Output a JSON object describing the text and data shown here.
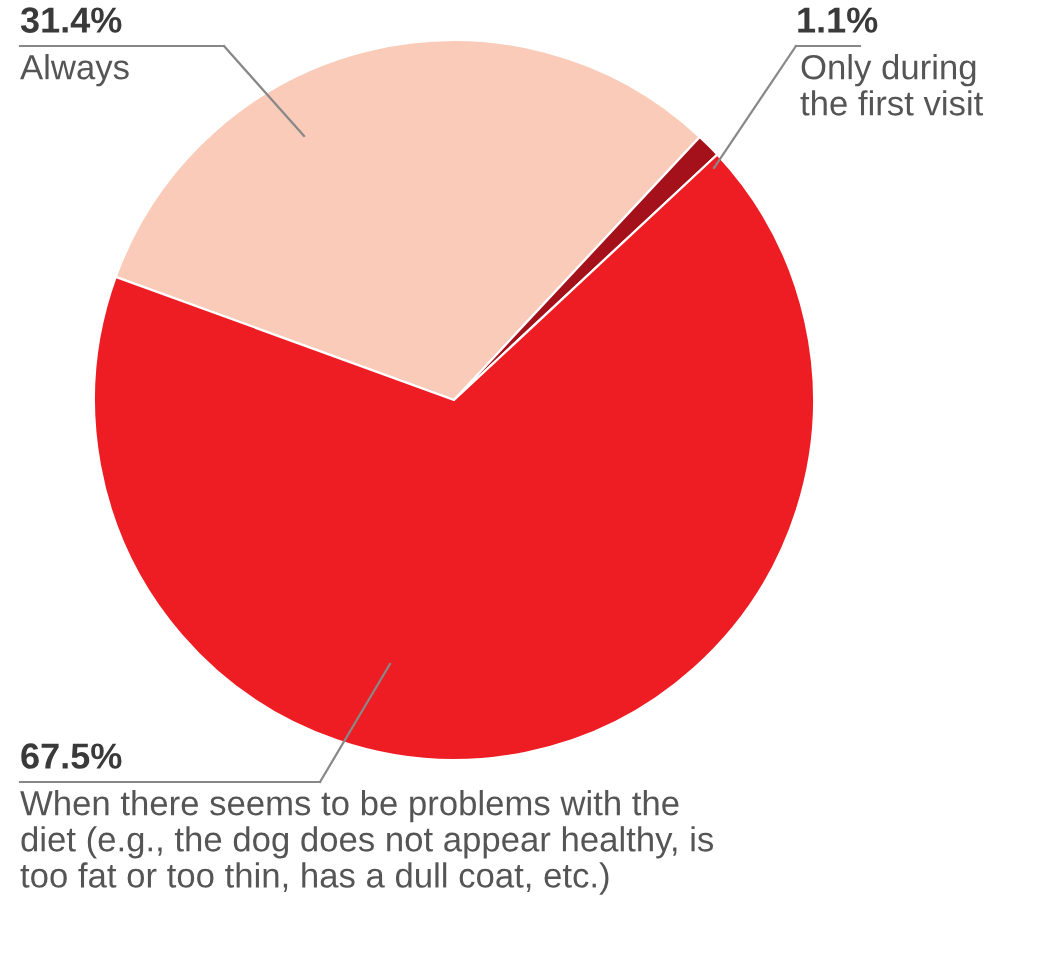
{
  "chart_data": {
    "type": "pie",
    "categories": [
      "Always",
      "Only during\nthe first visit",
      "When there seems to be problems with the\ndiet (e.g., the dog does not appear healthy, is\ntoo fat or too thin, has a dull coat, etc.)"
    ],
    "values": [
      31.4,
      1.1,
      67.5
    ],
    "colors": [
      "#f9cbb8",
      "#a5111b",
      "#ee1d23"
    ],
    "value_labels": [
      "31.4%",
      "1.1%",
      "67.5%"
    ]
  }
}
